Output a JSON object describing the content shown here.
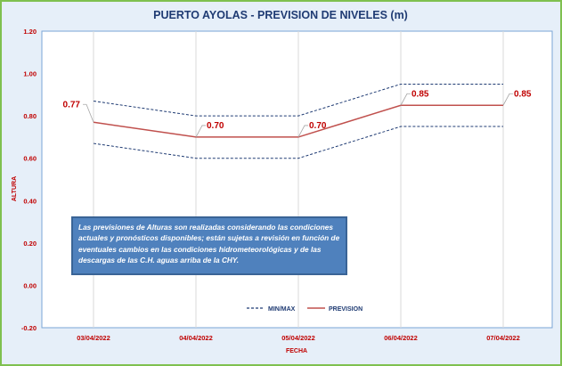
{
  "chart_data": {
    "type": "line",
    "title": "PUERTO AYOLAS - PREVISION DE NIVELES (m)",
    "xlabel": "FECHA",
    "ylabel": "ALTURA",
    "categories": [
      "03/04/2022",
      "04/04/2022",
      "05/04/2022",
      "06/04/2022",
      "07/04/2022"
    ],
    "ylim": [
      -0.2,
      1.2
    ],
    "yticks": [
      "-0.20",
      "0.00",
      "0.20",
      "0.40",
      "0.60",
      "0.80",
      "1.00",
      "1.20"
    ],
    "series": [
      {
        "name": "PREVISION",
        "values": [
          0.77,
          0.7,
          0.7,
          0.85,
          0.85
        ],
        "color": "#c0504d",
        "style": "solid"
      },
      {
        "name": "MIN/MAX",
        "part": "max",
        "values": [
          0.87,
          0.8,
          0.8,
          0.95,
          0.95
        ],
        "color": "#1f3b73",
        "style": "dashed"
      },
      {
        "part": "min",
        "values": [
          0.67,
          0.6,
          0.6,
          0.75,
          0.75
        ],
        "color": "#1f3b73",
        "style": "dashed"
      }
    ],
    "data_labels": [
      "0.77",
      "0.70",
      "0.70",
      "0.85",
      "0.85"
    ],
    "legend": [
      "MIN/MAX",
      "PREVISION"
    ],
    "legend_position": "bottom-right",
    "grid": "vertical",
    "annotation": "Las previsiones de Alturas son realizadas considerando las condiciones actuales y pronósticos disponibles; están sujetas a revisión en función de eventuales cambios en las condiciones hidrometeorológicas y de las descargas de las C.H. aguas arriba de la CHY.",
    "colors": {
      "background": "#e6eff9",
      "border": "#7fc04f",
      "title": "#1f3b73",
      "ticks": "#c00000",
      "note_bg": "#4f81bd"
    }
  }
}
